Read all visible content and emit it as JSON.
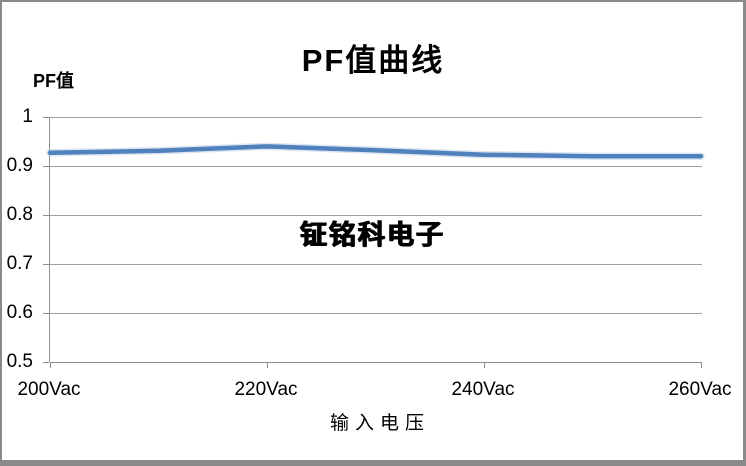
{
  "window": {
    "background": "#ffffff",
    "border_color": "#8a8a8a"
  },
  "header": {
    "title": "PF值曲线"
  },
  "axes": {
    "y_title": "PF值",
    "x_title": "输入电压"
  },
  "watermark": "钲铭科电子",
  "chart_data": {
    "type": "line",
    "title": "PF值曲线",
    "xlabel": "输入电压",
    "ylabel": "PF值",
    "categories": [
      "200Vac",
      "220Vac",
      "240Vac",
      "260Vac"
    ],
    "x": [
      200,
      210,
      220,
      230,
      240,
      250,
      260
    ],
    "series": [
      {
        "name": "PF",
        "values": [
          0.927,
          0.931,
          0.94,
          0.932,
          0.923,
          0.92,
          0.92
        ]
      }
    ],
    "xlim": [
      200,
      260
    ],
    "ylim": [
      0.5,
      1.0
    ],
    "yticks": [
      1,
      0.9,
      0.8,
      0.7,
      0.6,
      0.5
    ],
    "ytick_labels": [
      "1",
      "0.9",
      "0.8",
      "0.7",
      "0.6",
      "0.5"
    ],
    "grid": true,
    "legend": false,
    "line_color": "#4f81bd",
    "line_halo_color": "#b4c7e0",
    "gridline_color": "#a0a0a0",
    "axis_color": "#8d8d8d",
    "watermark": "钲铭科电子"
  }
}
